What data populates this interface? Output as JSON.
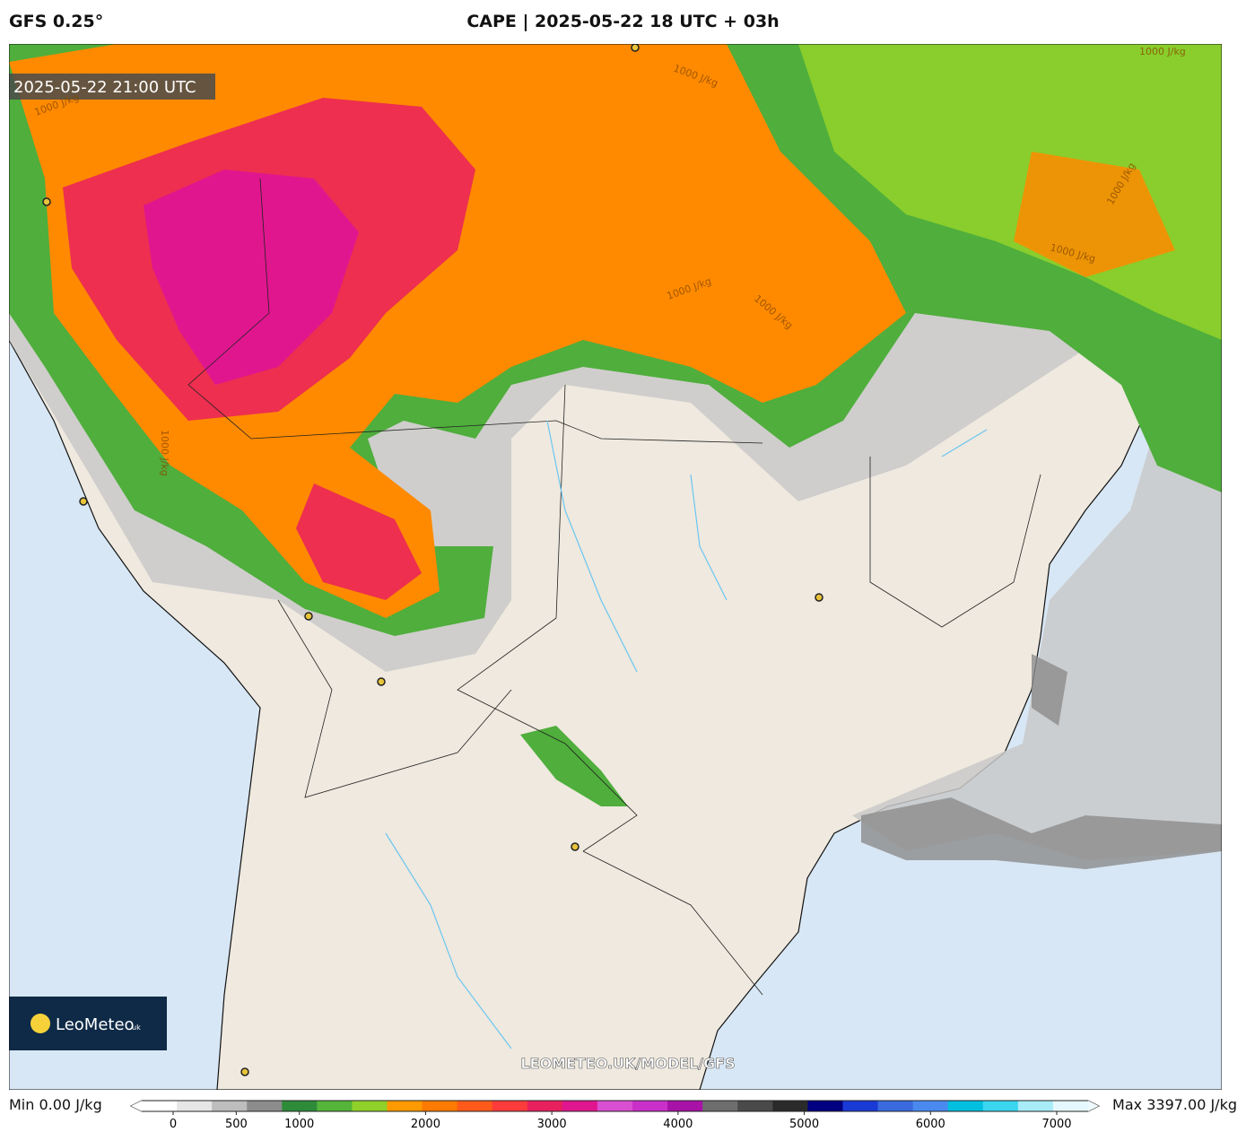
{
  "header": {
    "model": "GFS 0.25°",
    "title": "CAPE | 2025-05-22 18 UTC + 03h"
  },
  "map": {
    "valid_time": "2025-05-22 21:00 UTC",
    "contour_labels": [
      "1000 J/kg",
      "1000 J/kg",
      "1000 J/kg",
      "1000 J/kg",
      "1000 J/kg",
      "1000 J/kg",
      "1000 J/kg",
      "1000 J/kg"
    ],
    "watermark": "LEOMETEO.UK/MODEL/GFS",
    "logo": {
      "name": "LeoMeteo",
      "suffix": "uk"
    }
  },
  "colorbar": {
    "min_label": "Min 0.00 J/kg",
    "max_label": "Max 3397.00 J/kg",
    "ticks": [
      0,
      500,
      1000,
      2000,
      3000,
      4000,
      5000,
      6000,
      7000
    ],
    "colors": [
      "#ffffff",
      "#e6e6e6",
      "#bdbdbd",
      "#8c8c8c",
      "#2e8b3a",
      "#55b43a",
      "#8fd12a",
      "#ff9900",
      "#ff7a00",
      "#ff5a1a",
      "#ff3b3b",
      "#e8215e",
      "#e0168f",
      "#d94fd1",
      "#c92fc9",
      "#a812a8",
      "#6e6e6e",
      "#4a4a4a",
      "#2a2a2a",
      "#000080",
      "#1a3ad6",
      "#3a6ae0",
      "#4a8aee",
      "#00bfe0",
      "#3ad6f0",
      "#a8ecf8",
      "#e6f8ff"
    ]
  }
}
